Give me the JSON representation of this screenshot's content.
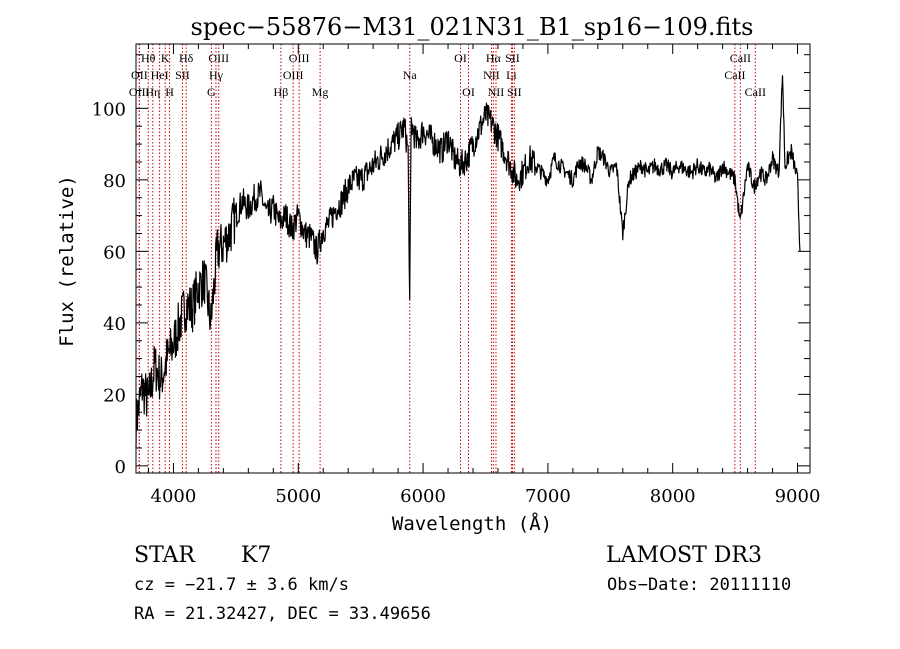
{
  "chart_data": {
    "type": "line",
    "title": "spec−55876−M31_021N31_B1_sp16−109.fits",
    "xlabel": "Wavelength (Å)",
    "ylabel": "Flux (relative)",
    "xlim": [
      3700,
      9100
    ],
    "ylim": [
      -2,
      118
    ],
    "xticks": [
      4000,
      5000,
      6000,
      7000,
      8000,
      9000
    ],
    "yticks": [
      0,
      20,
      40,
      60,
      80,
      100
    ],
    "x_minor_step": 200,
    "y_minor_step": 5,
    "grid": false,
    "series": [
      {
        "name": "flux",
        "color": "#000000",
        "x": [
          3700,
          3750,
          3800,
          3850,
          3900,
          3950,
          4000,
          4050,
          4100,
          4150,
          4200,
          4250,
          4300,
          4350,
          4400,
          4450,
          4500,
          4550,
          4600,
          4650,
          4700,
          4750,
          4800,
          4850,
          4900,
          4950,
          5000,
          5050,
          5100,
          5150,
          5200,
          5250,
          5300,
          5350,
          5400,
          5450,
          5500,
          5550,
          5600,
          5650,
          5700,
          5750,
          5800,
          5850,
          5880,
          5893,
          5905,
          5950,
          6000,
          6050,
          6100,
          6150,
          6200,
          6250,
          6300,
          6350,
          6400,
          6450,
          6500,
          6550,
          6600,
          6650,
          6700,
          6750,
          6800,
          6850,
          6900,
          6950,
          7000,
          7050,
          7100,
          7150,
          7200,
          7250,
          7300,
          7350,
          7400,
          7450,
          7500,
          7550,
          7600,
          7650,
          7700,
          7750,
          7800,
          7850,
          7900,
          7950,
          8000,
          8050,
          8100,
          8150,
          8200,
          8250,
          8300,
          8350,
          8400,
          8450,
          8500,
          8540,
          8600,
          8650,
          8700,
          8750,
          8800,
          8850,
          8880,
          8900,
          8950,
          9000,
          9020
        ],
        "values": [
          12,
          22,
          18,
          28,
          24,
          30,
          34,
          40,
          45,
          44,
          50,
          52,
          40,
          60,
          62,
          65,
          70,
          74,
          72,
          75,
          76,
          70,
          72,
          68,
          70,
          66,
          70,
          65,
          64,
          60,
          66,
          68,
          72,
          74,
          78,
          80,
          80,
          82,
          84,
          86,
          88,
          90,
          92,
          95,
          88,
          45,
          96,
          90,
          94,
          92,
          90,
          88,
          92,
          86,
          84,
          86,
          90,
          94,
          98,
          96,
          92,
          88,
          84,
          80,
          82,
          86,
          84,
          82,
          80,
          86,
          84,
          82,
          80,
          85,
          84,
          80,
          88,
          86,
          82,
          84,
          65,
          80,
          82,
          84,
          82,
          84,
          83,
          84,
          82,
          84,
          83,
          82,
          84,
          82,
          83,
          80,
          84,
          82,
          80,
          68,
          84,
          78,
          82,
          80,
          86,
          82,
          110,
          84,
          88,
          80,
          60
        ]
      }
    ],
    "line_color": "#cc0000",
    "spectral_lines": [
      {
        "label": "Hθ",
        "x": 3798,
        "row": 1
      },
      {
        "label": "OII",
        "x": 3727,
        "row": 2
      },
      {
        "label": "OIII",
        "x": 3726,
        "row": 3
      },
      {
        "label": "K",
        "x": 3934,
        "row": 1
      },
      {
        "label": "HeI",
        "x": 3889,
        "row": 2
      },
      {
        "label": "Hη",
        "x": 3835,
        "row": 3
      },
      {
        "label": "H",
        "x": 3969,
        "row": 3
      },
      {
        "label": "SII",
        "x": 4072,
        "row": 2
      },
      {
        "label": "Hδ",
        "x": 4102,
        "row": 1
      },
      {
        "label": "OIII",
        "x": 4363,
        "row": 1
      },
      {
        "label": "Hγ",
        "x": 4341,
        "row": 2
      },
      {
        "label": "G",
        "x": 4304,
        "row": 3
      },
      {
        "label": "Hβ",
        "x": 4861,
        "row": 3
      },
      {
        "label": "OIII",
        "x": 5007,
        "row": 1
      },
      {
        "label": "OIII",
        "x": 4959,
        "row": 2
      },
      {
        "label": "Mg",
        "x": 5175,
        "row": 3
      },
      {
        "label": "Na",
        "x": 5893,
        "row": 2
      },
      {
        "label": "OI",
        "x": 6300,
        "row": 1
      },
      {
        "label": "OI",
        "x": 6364,
        "row": 3
      },
      {
        "label": "Hα",
        "x": 6563,
        "row": 1
      },
      {
        "label": "SII",
        "x": 6716,
        "row": 1
      },
      {
        "label": "NII",
        "x": 6548,
        "row": 2
      },
      {
        "label": "Li",
        "x": 6708,
        "row": 2
      },
      {
        "label": "NII",
        "x": 6584,
        "row": 3
      },
      {
        "label": "SII",
        "x": 6731,
        "row": 3
      },
      {
        "label": "CaII",
        "x": 8542,
        "row": 1
      },
      {
        "label": "CaII",
        "x": 8498,
        "row": 2
      },
      {
        "label": "CaII",
        "x": 8662,
        "row": 3
      }
    ]
  },
  "info": {
    "object_type": "STAR",
    "subclass": "K7",
    "survey": "LAMOST DR3",
    "cz": "cz = −21.7 ± 3.6 km/s",
    "obs_date": "Obs−Date: 20111110",
    "coords": "RA =  21.32427, DEC =  33.49656"
  }
}
